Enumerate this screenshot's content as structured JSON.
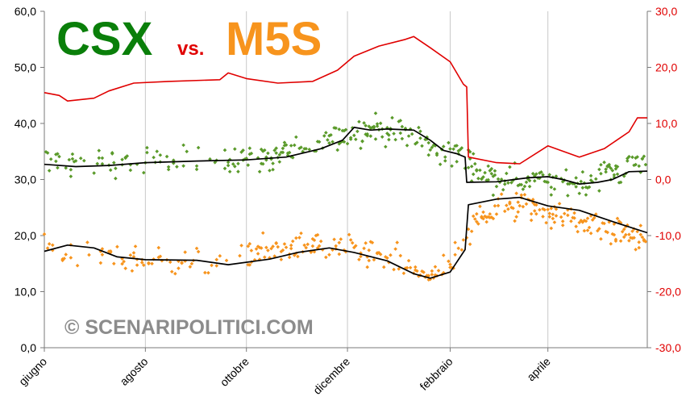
{
  "title": {
    "left": "CSX",
    "mid": "vs.",
    "right": "M5S"
  },
  "watermark": "© SCENARIPOLITICI.COM",
  "colors": {
    "csx": "#0a7f0a",
    "csx_points": "#5a9a2a",
    "m5s": "#f7941d",
    "difference": "#e00000",
    "average": "#000000"
  },
  "chart_data": {
    "type": "scatter",
    "x_axis": {
      "type": "date",
      "range": [
        "2013-06-01",
        "2014-05-31"
      ],
      "tick_labels": [
        "giugno",
        "agosto",
        "ottobre",
        "dicembre",
        "febbraio",
        "aprile"
      ],
      "tick_dates": [
        "2013-06-01",
        "2013-08-01",
        "2013-10-01",
        "2013-12-01",
        "2014-02-01",
        "2014-04-01"
      ]
    },
    "y_left": {
      "range": [
        0,
        60
      ],
      "tick_labels": [
        "0,0",
        "10,0",
        "20,0",
        "30,0",
        "40,0",
        "50,0",
        "60,0"
      ],
      "tick_values": [
        0,
        10,
        20,
        30,
        40,
        50,
        60
      ]
    },
    "y_right": {
      "range": [
        -30,
        30
      ],
      "tick_labels": [
        "-30,0",
        "-20,0",
        "-10,0",
        "0,0",
        "10,0",
        "20,0",
        "30,0"
      ],
      "tick_values": [
        -30,
        -20,
        -10,
        0,
        10,
        20,
        30
      ]
    },
    "grid": "vertical-only at month ticks",
    "series": [
      {
        "name": "CSX",
        "kind": "points",
        "axis": "left",
        "anchors": [
          [
            "2013-06-01",
            32.8
          ],
          [
            "2013-07-15",
            33.0
          ],
          [
            "2013-09-01",
            33.5
          ],
          [
            "2013-10-15",
            34.0
          ],
          [
            "2013-11-10",
            36.0
          ],
          [
            "2013-12-01",
            38.5
          ],
          [
            "2013-12-20",
            39.0
          ],
          [
            "2014-01-10",
            38.0
          ],
          [
            "2014-01-25",
            35.0
          ],
          [
            "2014-02-10",
            34.0
          ],
          [
            "2014-02-20",
            31.0
          ],
          [
            "2014-03-10",
            30.0
          ],
          [
            "2014-04-01",
            30.0
          ],
          [
            "2014-04-20",
            29.5
          ],
          [
            "2014-05-10",
            31.5
          ],
          [
            "2014-05-30",
            34.0
          ]
        ],
        "spread": 2.5
      },
      {
        "name": "CSX average",
        "kind": "line",
        "axis": "left",
        "points": [
          [
            "2013-06-01",
            32.7
          ],
          [
            "2013-06-20",
            32.3
          ],
          [
            "2013-07-10",
            32.5
          ],
          [
            "2013-08-01",
            33.0
          ],
          [
            "2013-09-01",
            33.3
          ],
          [
            "2013-10-01",
            33.5
          ],
          [
            "2013-10-25",
            34.0
          ],
          [
            "2013-11-15",
            35.5
          ],
          [
            "2013-11-28",
            37.0
          ],
          [
            "2013-12-05",
            39.3
          ],
          [
            "2013-12-15",
            38.8
          ],
          [
            "2013-12-25",
            39.0
          ],
          [
            "2014-01-10",
            38.8
          ],
          [
            "2014-01-20",
            37.0
          ],
          [
            "2014-01-28",
            35.2
          ],
          [
            "2014-02-05",
            34.6
          ],
          [
            "2014-02-10",
            34.0
          ],
          [
            "2014-02-11",
            29.5
          ],
          [
            "2014-03-01",
            29.6
          ],
          [
            "2014-03-20",
            30.3
          ],
          [
            "2014-04-01",
            30.5
          ],
          [
            "2014-04-10",
            30.0
          ],
          [
            "2014-04-20",
            29.2
          ],
          [
            "2014-05-01",
            29.5
          ],
          [
            "2014-05-10",
            30.0
          ],
          [
            "2014-05-20",
            31.4
          ],
          [
            "2014-05-31",
            31.5
          ]
        ]
      },
      {
        "name": "M5S",
        "kind": "points",
        "axis": "left",
        "anchors": [
          [
            "2013-06-01",
            19.0
          ],
          [
            "2013-06-20",
            16.0
          ],
          [
            "2013-07-15",
            15.5
          ],
          [
            "2013-08-15",
            15.5
          ],
          [
            "2013-09-15",
            15.5
          ],
          [
            "2013-10-15",
            17.5
          ],
          [
            "2013-11-15",
            18.0
          ],
          [
            "2013-12-10",
            17.0
          ],
          [
            "2014-01-01",
            15.5
          ],
          [
            "2014-01-15",
            12.5
          ],
          [
            "2014-02-01",
            14.5
          ],
          [
            "2014-02-10",
            19.0
          ],
          [
            "2014-02-20",
            24.0
          ],
          [
            "2014-03-15",
            25.5
          ],
          [
            "2014-04-10",
            23.5
          ],
          [
            "2014-05-10",
            21.0
          ],
          [
            "2014-05-30",
            19.0
          ]
        ],
        "spread": 2.5
      },
      {
        "name": "M5S average",
        "kind": "line",
        "axis": "left",
        "points": [
          [
            "2013-06-01",
            17.2
          ],
          [
            "2013-06-15",
            18.3
          ],
          [
            "2013-07-01",
            17.8
          ],
          [
            "2013-07-15",
            16.2
          ],
          [
            "2013-08-01",
            15.7
          ],
          [
            "2013-09-01",
            15.6
          ],
          [
            "2013-09-20",
            14.8
          ],
          [
            "2013-10-15",
            15.8
          ],
          [
            "2013-11-01",
            17.0
          ],
          [
            "2013-11-20",
            17.8
          ],
          [
            "2013-12-05",
            17.0
          ],
          [
            "2013-12-25",
            15.5
          ],
          [
            "2014-01-10",
            13.2
          ],
          [
            "2014-01-20",
            12.4
          ],
          [
            "2014-02-01",
            13.5
          ],
          [
            "2014-02-10",
            17.5
          ],
          [
            "2014-02-12",
            25.5
          ],
          [
            "2014-03-01",
            26.5
          ],
          [
            "2014-03-15",
            26.8
          ],
          [
            "2014-04-01",
            25.3
          ],
          [
            "2014-04-20",
            24.5
          ],
          [
            "2014-05-10",
            22.5
          ],
          [
            "2014-05-31",
            20.5
          ]
        ]
      },
      {
        "name": "Difference",
        "kind": "line",
        "axis": "right",
        "points": [
          [
            "2013-06-01",
            15.5
          ],
          [
            "2013-06-10",
            15.0
          ],
          [
            "2013-06-15",
            14.0
          ],
          [
            "2013-07-01",
            14.5
          ],
          [
            "2013-07-10",
            15.8
          ],
          [
            "2013-07-25",
            17.2
          ],
          [
            "2013-08-15",
            17.5
          ],
          [
            "2013-09-15",
            17.8
          ],
          [
            "2013-09-20",
            19.0
          ],
          [
            "2013-10-01",
            18.0
          ],
          [
            "2013-10-20",
            17.2
          ],
          [
            "2013-11-10",
            17.5
          ],
          [
            "2013-11-25",
            19.5
          ],
          [
            "2013-12-05",
            22.0
          ],
          [
            "2013-12-20",
            23.8
          ],
          [
            "2014-01-05",
            25.0
          ],
          [
            "2014-01-10",
            25.5
          ],
          [
            "2014-01-20",
            23.5
          ],
          [
            "2014-02-01",
            21.0
          ],
          [
            "2014-02-09",
            17.0
          ],
          [
            "2014-02-11",
            16.5
          ],
          [
            "2014-02-12",
            4.0
          ],
          [
            "2014-03-01",
            3.0
          ],
          [
            "2014-03-15",
            2.8
          ],
          [
            "2014-04-01",
            6.0
          ],
          [
            "2014-04-20",
            4.0
          ],
          [
            "2014-05-05",
            5.5
          ],
          [
            "2014-05-20",
            8.5
          ],
          [
            "2014-05-25",
            11.0
          ],
          [
            "2014-05-31",
            11.0
          ]
        ]
      }
    ]
  }
}
